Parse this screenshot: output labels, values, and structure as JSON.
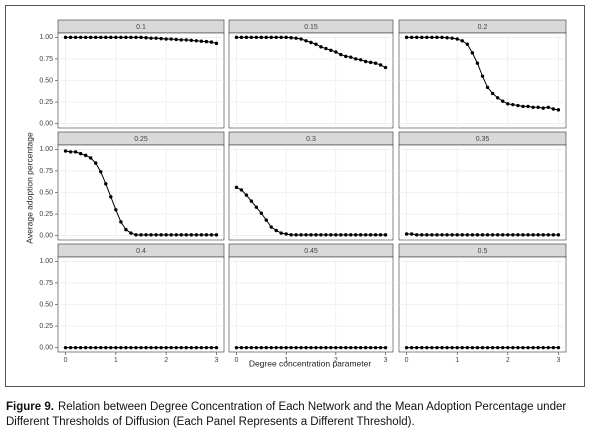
{
  "figure": {
    "xlabel": "Degree concentration parameter",
    "ylabel": "Average adoption percentage",
    "xlim": [
      -0.15,
      3.15
    ],
    "ylim": [
      -0.05,
      1.05
    ],
    "xticks": [
      0,
      1,
      2,
      3
    ],
    "yticks": [
      {
        "value": 0,
        "label": "0.00"
      },
      {
        "value": 0.25,
        "label": "0.25"
      },
      {
        "value": 0.5,
        "label": "0.50"
      },
      {
        "value": 0.75,
        "label": "0.75"
      },
      {
        "value": 1,
        "label": "1.00"
      }
    ],
    "grid": true,
    "caption_label": "Figure 9.",
    "caption": "Relation between Degree Concentration of Each Network and the Mean Adoption Percentage under Different Thresholds of Diffusion (Each Panel Represents a Different Threshold)."
  },
  "chart_data": [
    {
      "type": "line",
      "title": "0.1",
      "color": "#000000",
      "x": [
        0,
        0.1,
        0.2,
        0.3,
        0.4,
        0.5,
        0.6,
        0.7,
        0.8,
        0.9,
        1,
        1.1,
        1.2,
        1.3,
        1.4,
        1.5,
        1.6,
        1.7,
        1.8,
        1.9,
        2,
        2.1,
        2.2,
        2.3,
        2.4,
        2.5,
        2.6,
        2.7,
        2.8,
        2.9,
        3
      ],
      "values": [
        1,
        1,
        1,
        1,
        1,
        1,
        1,
        1,
        1,
        1,
        1,
        1,
        1,
        1,
        1,
        1,
        0.995,
        0.99,
        0.99,
        0.985,
        0.98,
        0.98,
        0.975,
        0.97,
        0.97,
        0.965,
        0.96,
        0.955,
        0.95,
        0.945,
        0.93
      ]
    },
    {
      "type": "line",
      "title": "0.15",
      "color": "#000000",
      "x": [
        0,
        0.1,
        0.2,
        0.3,
        0.4,
        0.5,
        0.6,
        0.7,
        0.8,
        0.9,
        1,
        1.1,
        1.2,
        1.3,
        1.4,
        1.5,
        1.6,
        1.7,
        1.8,
        1.9,
        2,
        2.1,
        2.2,
        2.3,
        2.4,
        2.5,
        2.6,
        2.7,
        2.8,
        2.9,
        3
      ],
      "values": [
        1,
        1,
        1,
        1,
        1,
        1,
        1,
        1,
        1,
        1,
        1,
        0.995,
        0.99,
        0.98,
        0.96,
        0.94,
        0.92,
        0.89,
        0.87,
        0.85,
        0.83,
        0.8,
        0.78,
        0.77,
        0.75,
        0.74,
        0.72,
        0.71,
        0.7,
        0.68,
        0.65
      ]
    },
    {
      "type": "line",
      "title": "0.2",
      "color": "#000000",
      "x": [
        0,
        0.1,
        0.2,
        0.3,
        0.4,
        0.5,
        0.6,
        0.7,
        0.8,
        0.9,
        1,
        1.1,
        1.2,
        1.3,
        1.4,
        1.5,
        1.6,
        1.7,
        1.8,
        1.9,
        2,
        2.1,
        2.2,
        2.3,
        2.4,
        2.5,
        2.6,
        2.7,
        2.8,
        2.9,
        3
      ],
      "values": [
        1,
        1,
        1,
        1,
        1,
        1,
        1,
        1,
        0.995,
        0.99,
        0.98,
        0.96,
        0.92,
        0.82,
        0.7,
        0.55,
        0.42,
        0.35,
        0.3,
        0.26,
        0.23,
        0.22,
        0.21,
        0.2,
        0.2,
        0.19,
        0.19,
        0.18,
        0.19,
        0.17,
        0.16
      ]
    },
    {
      "type": "line",
      "title": "0.25",
      "color": "#000000",
      "x": [
        0,
        0.1,
        0.2,
        0.3,
        0.4,
        0.5,
        0.6,
        0.7,
        0.8,
        0.9,
        1,
        1.1,
        1.2,
        1.3,
        1.4,
        1.5,
        1.6,
        1.7,
        1.8,
        1.9,
        2,
        2.1,
        2.2,
        2.3,
        2.4,
        2.5,
        2.6,
        2.7,
        2.8,
        2.9,
        3
      ],
      "values": [
        0.98,
        0.97,
        0.97,
        0.95,
        0.93,
        0.9,
        0.84,
        0.74,
        0.6,
        0.45,
        0.3,
        0.16,
        0.07,
        0.03,
        0.01,
        0.01,
        0.01,
        0.01,
        0.01,
        0.01,
        0.01,
        0.01,
        0.01,
        0.01,
        0.01,
        0.01,
        0.01,
        0.01,
        0.01,
        0.01,
        0.01
      ]
    },
    {
      "type": "line",
      "title": "0.3",
      "color": "#000000",
      "x": [
        0,
        0.1,
        0.2,
        0.3,
        0.4,
        0.5,
        0.6,
        0.7,
        0.8,
        0.9,
        1,
        1.1,
        1.2,
        1.3,
        1.4,
        1.5,
        1.6,
        1.7,
        1.8,
        1.9,
        2,
        2.1,
        2.2,
        2.3,
        2.4,
        2.5,
        2.6,
        2.7,
        2.8,
        2.9,
        3
      ],
      "values": [
        0.56,
        0.53,
        0.47,
        0.4,
        0.33,
        0.26,
        0.18,
        0.1,
        0.06,
        0.03,
        0.02,
        0.01,
        0.01,
        0.01,
        0.01,
        0.01,
        0.01,
        0.01,
        0.01,
        0.01,
        0.01,
        0.01,
        0.01,
        0.01,
        0.01,
        0.01,
        0.01,
        0.01,
        0.01,
        0.01,
        0.01
      ]
    },
    {
      "type": "line",
      "title": "0.35",
      "color": "#000000",
      "x": [
        0,
        0.1,
        0.2,
        0.3,
        0.4,
        0.5,
        0.6,
        0.7,
        0.8,
        0.9,
        1,
        1.1,
        1.2,
        1.3,
        1.4,
        1.5,
        1.6,
        1.7,
        1.8,
        1.9,
        2,
        2.1,
        2.2,
        2.3,
        2.4,
        2.5,
        2.6,
        2.7,
        2.8,
        2.9,
        3
      ],
      "values": [
        0.02,
        0.02,
        0.01,
        0.01,
        0.01,
        0.01,
        0.01,
        0.01,
        0.01,
        0.01,
        0.01,
        0.01,
        0.01,
        0.01,
        0.01,
        0.01,
        0.01,
        0.01,
        0.01,
        0.01,
        0.01,
        0.01,
        0.01,
        0.01,
        0.01,
        0.01,
        0.01,
        0.01,
        0.01,
        0.01,
        0.01
      ]
    },
    {
      "type": "line",
      "title": "0.4",
      "color": "#000000",
      "x": [
        0,
        0.1,
        0.2,
        0.3,
        0.4,
        0.5,
        0.6,
        0.7,
        0.8,
        0.9,
        1,
        1.1,
        1.2,
        1.3,
        1.4,
        1.5,
        1.6,
        1.7,
        1.8,
        1.9,
        2,
        2.1,
        2.2,
        2.3,
        2.4,
        2.5,
        2.6,
        2.7,
        2.8,
        2.9,
        3
      ],
      "values": [
        0,
        0,
        0,
        0,
        0,
        0,
        0,
        0,
        0,
        0,
        0,
        0,
        0,
        0,
        0,
        0,
        0,
        0,
        0,
        0,
        0,
        0,
        0,
        0,
        0,
        0,
        0,
        0,
        0,
        0,
        0
      ]
    },
    {
      "type": "line",
      "title": "0.45",
      "color": "#000000",
      "x": [
        0,
        0.1,
        0.2,
        0.3,
        0.4,
        0.5,
        0.6,
        0.7,
        0.8,
        0.9,
        1,
        1.1,
        1.2,
        1.3,
        1.4,
        1.5,
        1.6,
        1.7,
        1.8,
        1.9,
        2,
        2.1,
        2.2,
        2.3,
        2.4,
        2.5,
        2.6,
        2.7,
        2.8,
        2.9,
        3
      ],
      "values": [
        0,
        0,
        0,
        0,
        0,
        0,
        0,
        0,
        0,
        0,
        0,
        0,
        0,
        0,
        0,
        0,
        0,
        0,
        0,
        0,
        0,
        0,
        0,
        0,
        0,
        0,
        0,
        0,
        0,
        0,
        0
      ]
    },
    {
      "type": "line",
      "title": "0.5",
      "color": "#000000",
      "x": [
        0,
        0.1,
        0.2,
        0.3,
        0.4,
        0.5,
        0.6,
        0.7,
        0.8,
        0.9,
        1,
        1.1,
        1.2,
        1.3,
        1.4,
        1.5,
        1.6,
        1.7,
        1.8,
        1.9,
        2,
        2.1,
        2.2,
        2.3,
        2.4,
        2.5,
        2.6,
        2.7,
        2.8,
        2.9,
        3
      ],
      "values": [
        0,
        0,
        0,
        0,
        0,
        0,
        0,
        0,
        0,
        0,
        0,
        0,
        0,
        0,
        0,
        0,
        0,
        0,
        0,
        0,
        0,
        0,
        0,
        0,
        0,
        0,
        0,
        0,
        0,
        0,
        0
      ]
    }
  ]
}
